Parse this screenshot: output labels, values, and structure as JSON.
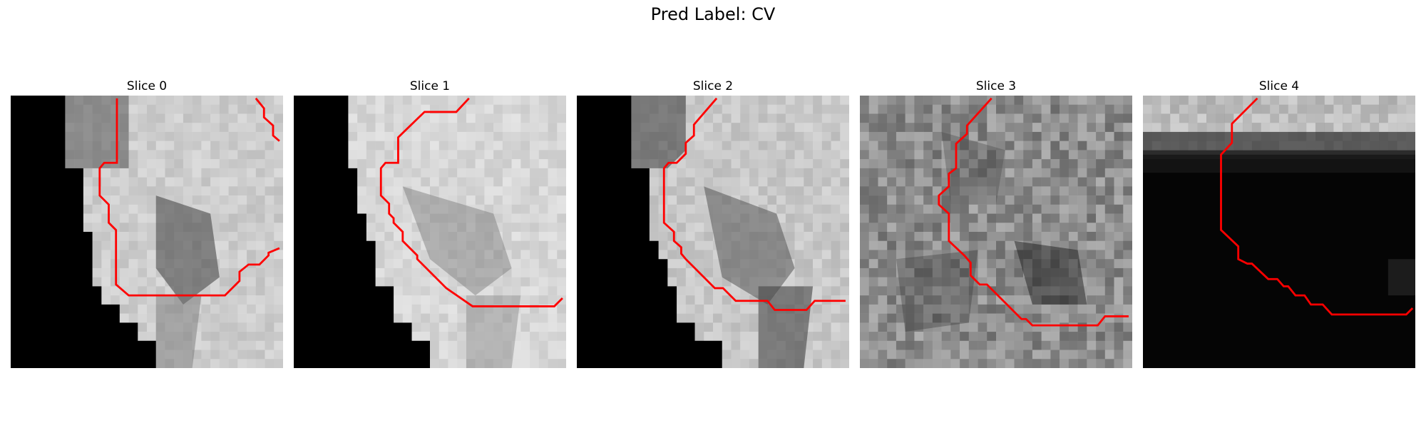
{
  "figure": {
    "title": "Pred Label: CV"
  },
  "panels": [
    {
      "title": "Slice 0"
    },
    {
      "title": "Slice 1"
    },
    {
      "title": "Slice 2"
    },
    {
      "title": "Slice 3"
    },
    {
      "title": "Slice 4"
    }
  ],
  "colors": {
    "contour": "#ff0000",
    "background": "#ffffff",
    "mask": "#000000"
  }
}
